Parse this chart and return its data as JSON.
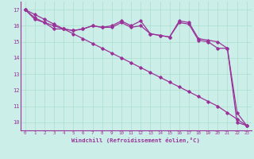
{
  "bg_color": "#cceee8",
  "line_color": "#993399",
  "grid_color": "#aaddcc",
  "xlabel": "Windchill (Refroidissement éolien,°C)",
  "xlim": [
    -0.5,
    23.5
  ],
  "ylim": [
    9.5,
    17.5
  ],
  "yticks": [
    10,
    11,
    12,
    13,
    14,
    15,
    16,
    17
  ],
  "xticks": [
    0,
    1,
    2,
    3,
    4,
    5,
    6,
    7,
    8,
    9,
    10,
    11,
    12,
    13,
    14,
    15,
    16,
    17,
    18,
    19,
    20,
    21,
    22,
    23
  ],
  "series": [
    [
      17.0,
      16.7,
      16.4,
      16.1,
      15.8,
      15.5,
      15.2,
      14.9,
      14.6,
      14.3,
      14.0,
      13.7,
      13.4,
      13.1,
      12.8,
      12.5,
      12.2,
      11.9,
      11.6,
      11.3,
      11.0,
      10.6,
      10.2,
      9.8
    ],
    [
      17.0,
      16.5,
      16.2,
      16.0,
      15.8,
      15.7,
      15.8,
      16.0,
      15.9,
      15.9,
      16.2,
      15.9,
      16.0,
      15.5,
      15.4,
      15.3,
      16.2,
      16.1,
      15.1,
      15.0,
      14.6,
      14.6,
      10.0,
      9.8
    ],
    [
      17.0,
      16.4,
      16.2,
      15.8,
      15.8,
      15.7,
      15.8,
      16.0,
      15.9,
      16.0,
      16.3,
      16.0,
      16.3,
      15.5,
      15.4,
      15.3,
      16.3,
      16.2,
      15.2,
      15.1,
      15.0,
      14.6,
      10.6,
      9.8
    ]
  ]
}
